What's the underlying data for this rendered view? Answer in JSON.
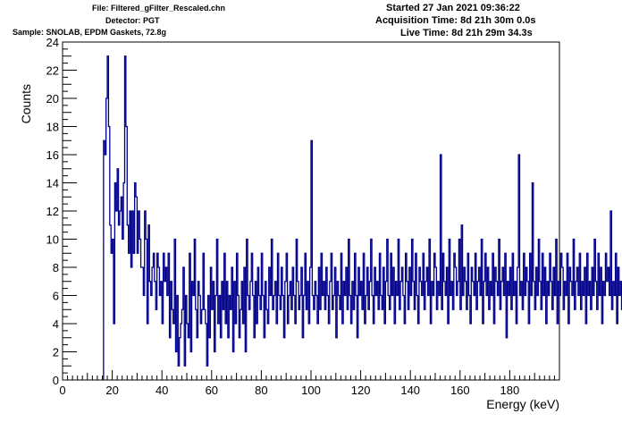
{
  "header": {
    "file": "File: Filtered_gFilter_Rescaled.chn",
    "detector": "Detector: PGT",
    "sample": "Sample: SNOLAB, EPDM Gaskets, 72.8g",
    "started": "Started 27 Jan 2021 09:36:22",
    "acquisition": "Acquisition Time: 8d 21h 30m 0.0s",
    "live": "Live Time: 8d 21h 29m 34.3s"
  },
  "colors": {
    "series": "#00008b",
    "axis": "#000000"
  },
  "chart_data": {
    "type": "histogram",
    "xlabel": "Energy (keV)",
    "ylabel": "Counts",
    "xlim": [
      0,
      200
    ],
    "ylim": [
      0,
      24
    ],
    "xticks": [
      "0",
      "20",
      "40",
      "60",
      "80",
      "100",
      "120",
      "140",
      "160",
      "180"
    ],
    "yticks": [
      "0",
      "2",
      "4",
      "6",
      "8",
      "10",
      "12",
      "14",
      "16",
      "18",
      "20",
      "22",
      "24"
    ],
    "grid": false,
    "series": [
      {
        "bin_width": 0.5,
        "x_start": 16.5,
        "values": [
          17,
          16,
          20,
          23,
          18,
          11,
          9,
          10,
          4,
          14,
          12,
          15,
          11,
          12,
          13,
          10,
          14,
          23,
          18,
          11,
          9,
          12,
          8,
          12,
          9,
          14,
          13,
          9,
          12,
          10,
          8,
          8,
          6,
          12,
          10,
          4,
          11,
          7,
          6,
          8,
          9,
          7,
          5,
          9,
          8,
          6,
          7,
          4,
          9,
          7,
          8,
          6,
          9,
          3,
          7,
          5,
          4,
          10,
          2,
          6,
          1,
          3,
          4,
          5,
          8,
          1,
          6,
          4,
          3,
          9,
          2,
          7,
          6,
          10,
          5,
          3,
          7,
          6,
          4,
          5,
          9,
          5,
          4,
          1,
          6,
          3,
          8,
          5,
          7,
          2,
          6,
          10,
          4,
          6,
          3,
          7,
          5,
          9,
          4,
          7,
          3,
          6,
          5,
          8,
          2,
          7,
          4,
          9,
          6,
          3,
          5,
          7,
          4,
          8,
          2,
          10,
          6,
          5,
          7,
          9,
          6,
          3,
          7,
          4,
          8,
          6,
          5,
          9,
          6,
          3,
          7,
          5,
          4,
          8,
          6,
          10,
          5,
          6,
          7,
          4,
          9,
          6,
          5,
          8,
          6,
          3,
          7,
          9,
          4,
          6,
          7,
          5,
          8,
          6,
          4,
          10,
          7,
          5,
          6,
          8,
          3,
          6,
          9,
          5,
          7,
          4,
          8,
          17,
          6,
          5,
          7,
          6,
          4,
          8,
          5,
          9,
          6,
          7,
          5,
          8,
          6,
          4,
          7,
          9,
          5,
          6,
          8,
          3,
          7,
          6,
          5,
          9,
          4,
          7,
          6,
          8,
          5,
          10,
          6,
          4,
          7,
          5,
          9,
          6,
          3,
          8,
          6,
          7,
          5,
          9,
          4,
          6,
          8,
          5,
          7,
          10,
          6,
          4,
          8,
          6,
          7,
          5,
          9,
          6,
          5,
          8,
          4,
          7,
          10,
          6,
          5,
          9,
          6,
          8,
          4,
          7,
          6,
          10,
          5,
          7,
          8,
          6,
          4,
          9,
          7,
          5,
          8,
          6,
          10,
          7,
          5,
          9,
          6,
          4,
          8,
          7,
          6,
          9,
          5,
          7,
          8,
          6,
          10,
          4,
          7,
          6,
          9,
          8,
          5,
          7,
          6,
          16,
          5,
          9,
          7,
          6,
          8,
          4,
          10,
          6,
          7,
          5,
          9,
          8,
          6,
          7,
          10,
          5,
          11,
          6,
          8,
          7,
          5,
          9,
          6,
          4,
          8,
          7,
          6,
          9,
          5,
          7,
          8,
          6,
          10,
          4,
          7,
          9,
          6,
          8,
          5,
          7,
          6,
          9,
          4,
          8,
          7,
          6,
          10,
          5,
          7,
          8,
          6,
          9,
          3,
          7,
          6,
          8,
          5,
          9,
          6,
          7,
          4,
          8,
          16,
          6,
          7,
          5,
          9,
          6,
          8,
          7,
          4,
          9,
          6,
          14,
          7,
          5,
          8,
          6,
          10,
          7,
          5,
          9,
          6,
          8,
          4,
          7,
          6,
          9,
          7,
          5,
          8,
          6,
          10,
          4,
          7,
          6,
          9,
          8,
          5,
          7,
          6,
          9,
          4,
          8,
          7,
          6,
          10,
          5,
          7,
          8,
          6,
          9,
          5,
          7,
          6,
          8,
          4,
          9,
          6,
          7,
          5,
          8,
          6,
          10,
          7,
          5,
          9,
          6,
          8,
          4,
          7,
          6,
          9,
          7,
          8,
          6,
          12,
          5,
          7,
          6,
          9,
          4,
          8,
          6,
          7,
          5,
          9,
          6
        ]
      }
    ]
  }
}
